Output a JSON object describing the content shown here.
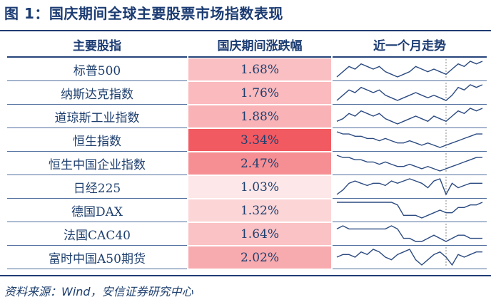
{
  "figure_title": "图 1：国庆期间全球主要股票市场指数表现",
  "columns": {
    "index": "主要股指",
    "change": "国庆期间涨跌幅",
    "trend": "近一个月走势"
  },
  "rows": [
    {
      "name": "标普500",
      "change": "1.68%",
      "change_pct": 1.68,
      "trend": [
        4,
        6,
        8,
        7,
        9,
        8,
        7,
        8,
        6,
        5,
        4,
        5,
        6,
        8,
        7,
        6,
        7,
        6,
        5,
        7,
        9,
        8,
        10,
        9,
        10
      ]
    },
    {
      "name": "纳斯达克指数",
      "change": "1.76%",
      "change_pct": 1.76,
      "trend": [
        4,
        6,
        8,
        7,
        9,
        8,
        7,
        8,
        6,
        5,
        4,
        5,
        6,
        7,
        6,
        5,
        6,
        5,
        4,
        6,
        9,
        8,
        10,
        9,
        10
      ]
    },
    {
      "name": "道琼斯工业指数",
      "change": "1.88%",
      "change_pct": 1.88,
      "trend": [
        5,
        6,
        8,
        7,
        9,
        8,
        7,
        8,
        6,
        5,
        4,
        5,
        6,
        7,
        6,
        5,
        7,
        6,
        5,
        7,
        9,
        8,
        10,
        9,
        10
      ]
    },
    {
      "name": "恒生指数",
      "change": "3.34%",
      "change_pct": 3.34,
      "trend": [
        9,
        8,
        8,
        7,
        7,
        6,
        6,
        5,
        6,
        5,
        4,
        4,
        5,
        4,
        3,
        4,
        3,
        2,
        3,
        4,
        5,
        6,
        7,
        8,
        8
      ]
    },
    {
      "name": "恒生中国企业指数",
      "change": "2.47%",
      "change_pct": 2.47,
      "trend": [
        9,
        8,
        8,
        7,
        7,
        6,
        6,
        5,
        6,
        5,
        4,
        4,
        5,
        4,
        3,
        4,
        3,
        2,
        3,
        4,
        5,
        6,
        7,
        8,
        8
      ]
    },
    {
      "name": "日经225",
      "change": "1.03%",
      "change_pct": 1.03,
      "trend": [
        3,
        5,
        8,
        9,
        8,
        7,
        8,
        8,
        7,
        9,
        8,
        9,
        10,
        9,
        8,
        6,
        9,
        10,
        3,
        8,
        6,
        7,
        8,
        8,
        8
      ]
    },
    {
      "name": "德国DAX",
      "change": "1.32%",
      "change_pct": 1.32,
      "trend": [
        8,
        8,
        8,
        8,
        8,
        8,
        8,
        8,
        8,
        8,
        7,
        3,
        3,
        3,
        2,
        3,
        4,
        5,
        4,
        4,
        6,
        6,
        7,
        7,
        8
      ]
    },
    {
      "name": "法国CAC40",
      "change": "1.64%",
      "change_pct": 1.64,
      "trend": [
        8,
        9,
        8,
        8,
        8,
        8,
        8,
        8,
        8,
        9,
        8,
        5,
        5,
        4,
        4,
        5,
        6,
        5,
        4,
        5,
        6,
        6,
        5,
        5,
        5
      ]
    },
    {
      "name": "富时中国A50期货",
      "change": "2.02%",
      "change_pct": 2.02,
      "trend": [
        6,
        7,
        7,
        6,
        8,
        7,
        9,
        8,
        6,
        5,
        7,
        8,
        9,
        5,
        3,
        5,
        7,
        8,
        6,
        3,
        7,
        6,
        7,
        8,
        8
      ]
    }
  ],
  "source": "资料来源：Wind，安信证券研究中心",
  "colors": {
    "navy": "#1b3b72",
    "heat_low": "#fde7e8",
    "heat_high": "#f25a62",
    "spark_line": "#2b4a80",
    "marker_line": "#8a8a8a"
  }
}
